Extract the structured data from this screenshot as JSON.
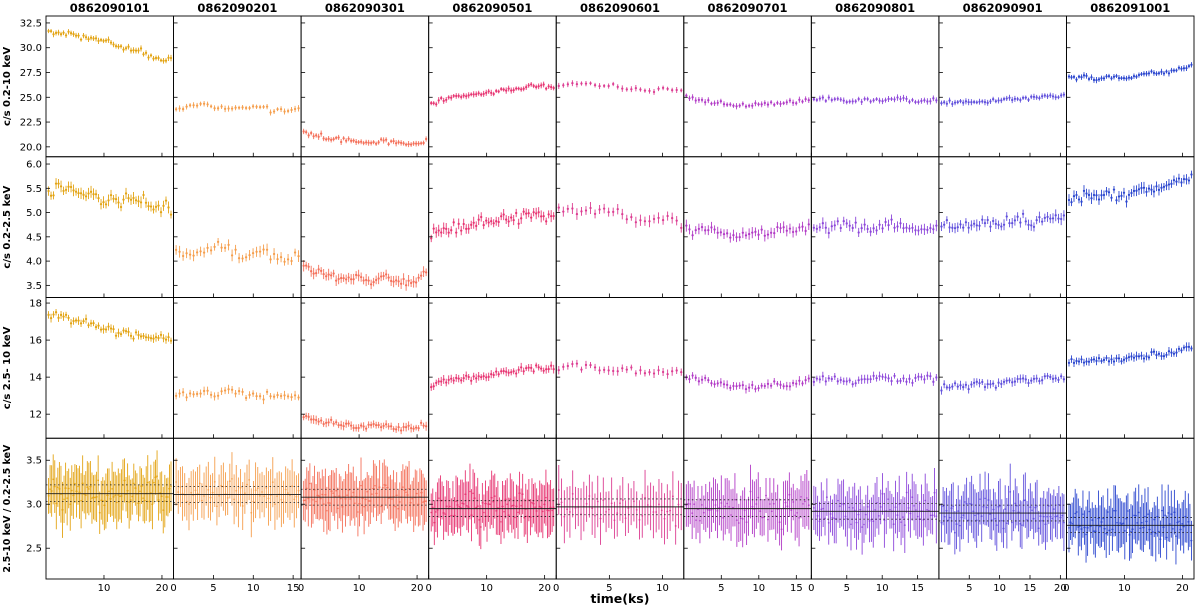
{
  "chart_data": {
    "type": "scatter",
    "description": "Grid of X-ray light curves (error-bar scatter) for 9 observations in 3 energy bands plus hardness ratio",
    "xlabel": "time(ks)",
    "rows": [
      {
        "label": "c/s 0.2-10 keV",
        "ylim": [
          19.0,
          33.2
        ],
        "yticks": [
          20.0,
          22.5,
          25.0,
          27.5,
          30.0,
          32.5
        ],
        "decimals": 1
      },
      {
        "label": "c/s 0.2-2.5 keV",
        "ylim": [
          3.25,
          6.15
        ],
        "yticks": [
          3.5,
          4.0,
          4.5,
          5.0,
          5.5,
          6.0
        ],
        "decimals": 1
      },
      {
        "label": "c/s 2.5- 10 keV",
        "ylim": [
          10.7,
          18.3
        ],
        "yticks": [
          12,
          14,
          16,
          18
        ],
        "decimals": 0
      },
      {
        "label": "2.5-10 keV / 0.2-2.5 keV",
        "ylim": [
          2.15,
          3.75
        ],
        "yticks": [
          2.5,
          3.0,
          3.5
        ],
        "decimals": 1
      }
    ],
    "columns": [
      {
        "obsid": "0862090101",
        "color": "#e3a414",
        "xlim": [
          0,
          22
        ],
        "xticks": [
          10,
          20
        ],
        "n_points": 50,
        "ratio_fit": {
          "mean": 3.12,
          "upper": 3.22,
          "lower": 3.03
        },
        "panels": [
          {
            "anchors": [
              31.7,
              31.4,
              31.2,
              31.0,
              30.7,
              30.3,
              29.9,
              29.5,
              29.1,
              28.7
            ],
            "scatter": 0.3,
            "err": 0.26
          },
          {
            "anchors": [
              5.5,
              5.55,
              5.42,
              5.35,
              5.28,
              5.25,
              5.3,
              5.2,
              5.15,
              5.1
            ],
            "scatter": 0.14,
            "err": 0.1
          },
          {
            "anchors": [
              17.4,
              17.2,
              17.1,
              16.9,
              16.7,
              16.5,
              16.4,
              16.2,
              16.1,
              16.0
            ],
            "scatter": 0.25,
            "err": 0.2
          },
          {
            "anchors": [
              3.12
            ],
            "scatter": 0.18,
            "err": 0.26
          }
        ]
      },
      {
        "obsid": "0862090201",
        "color": "#f59e4c",
        "xlim": [
          0,
          16
        ],
        "xticks": [
          0,
          5,
          10,
          15
        ],
        "n_points": 36,
        "ratio_fit": {
          "mean": 3.11,
          "upper": 3.2,
          "lower": 3.02
        },
        "panels": [
          {
            "anchors": [
              23.9,
              24.1,
              24.3,
              23.9,
              24.0,
              23.8,
              24.1,
              23.8,
              23.6,
              23.9
            ],
            "scatter": 0.25,
            "err": 0.26
          },
          {
            "anchors": [
              4.2,
              4.15,
              4.25,
              4.3,
              4.2,
              4.1,
              4.25,
              4.12,
              4.05,
              4.15
            ],
            "scatter": 0.1,
            "err": 0.1
          },
          {
            "anchors": [
              13.0,
              13.1,
              13.2,
              13.0,
              13.3,
              13.1,
              12.9,
              13.0,
              12.85,
              13.0
            ],
            "scatter": 0.18,
            "err": 0.2
          },
          {
            "anchors": [
              3.11
            ],
            "scatter": 0.18,
            "err": 0.26
          }
        ]
      },
      {
        "obsid": "0862090301",
        "color": "#f4705a",
        "xlim": [
          0,
          22
        ],
        "xticks": [
          0,
          10,
          20
        ],
        "n_points": 50,
        "ratio_fit": {
          "mean": 3.08,
          "upper": 3.17,
          "lower": 2.99
        },
        "panels": [
          {
            "anchors": [
              21.4,
              21.1,
              20.9,
              20.7,
              20.5,
              20.4,
              20.6,
              20.3,
              20.2,
              20.5
            ],
            "scatter": 0.25,
            "err": 0.26
          },
          {
            "anchors": [
              3.85,
              3.75,
              3.7,
              3.62,
              3.7,
              3.58,
              3.66,
              3.55,
              3.6,
              3.72
            ],
            "scatter": 0.1,
            "err": 0.1
          },
          {
            "anchors": [
              11.9,
              11.6,
              11.5,
              11.4,
              11.3,
              11.45,
              11.3,
              11.25,
              11.3,
              11.45
            ],
            "scatter": 0.17,
            "err": 0.2
          },
          {
            "anchors": [
              3.08
            ],
            "scatter": 0.18,
            "err": 0.26
          }
        ]
      },
      {
        "obsid": "0862090501",
        "color": "#e73572",
        "xlim": [
          0,
          22
        ],
        "xticks": [
          0,
          10,
          20
        ],
        "n_points": 50,
        "ratio_fit": {
          "mean": 2.95,
          "upper": 3.04,
          "lower": 2.86
        },
        "panels": [
          {
            "anchors": [
              24.4,
              24.8,
              25.1,
              25.3,
              25.5,
              25.6,
              25.8,
              26.0,
              26.1,
              26.0
            ],
            "scatter": 0.25,
            "err": 0.26
          },
          {
            "anchors": [
              4.5,
              4.6,
              4.7,
              4.75,
              4.8,
              4.85,
              4.9,
              4.95,
              4.9,
              4.95
            ],
            "scatter": 0.12,
            "err": 0.1
          },
          {
            "anchors": [
              13.5,
              13.8,
              13.9,
              14.0,
              14.1,
              14.2,
              14.3,
              14.45,
              14.5,
              14.4
            ],
            "scatter": 0.2,
            "err": 0.2
          },
          {
            "anchors": [
              2.95
            ],
            "scatter": 0.18,
            "err": 0.26
          }
        ]
      },
      {
        "obsid": "0862090601",
        "color": "#dc3d92",
        "xlim": [
          0,
          12
        ],
        "xticks": [
          0,
          5,
          10
        ],
        "n_points": 28,
        "ratio_fit": {
          "mean": 2.97,
          "upper": 3.06,
          "lower": 2.88
        },
        "panels": [
          {
            "anchors": [
              26.2,
              26.4,
              26.3,
              26.2,
              26.1,
              25.9,
              25.8,
              25.7,
              25.9,
              25.6
            ],
            "scatter": 0.22,
            "err": 0.26
          },
          {
            "anchors": [
              5.0,
              5.05,
              5.1,
              5.0,
              4.95,
              4.9,
              4.85,
              4.8,
              4.9,
              4.75
            ],
            "scatter": 0.12,
            "err": 0.1
          },
          {
            "anchors": [
              14.5,
              14.6,
              14.55,
              14.45,
              14.35,
              14.45,
              14.3,
              14.25,
              14.35,
              14.2
            ],
            "scatter": 0.17,
            "err": 0.2
          },
          {
            "anchors": [
              2.97
            ],
            "scatter": 0.18,
            "err": 0.26
          }
        ]
      },
      {
        "obsid": "0862090701",
        "color": "#b23bc6",
        "xlim": [
          0,
          17
        ],
        "xticks": [
          5,
          10,
          15
        ],
        "n_points": 40,
        "ratio_fit": {
          "mean": 2.95,
          "upper": 3.05,
          "lower": 2.86
        },
        "panels": [
          {
            "anchors": [
              25.0,
              24.7,
              24.5,
              24.2,
              24.1,
              24.2,
              24.4,
              24.5,
              24.6,
              24.8
            ],
            "scatter": 0.22,
            "err": 0.26
          },
          {
            "anchors": [
              4.7,
              4.65,
              4.6,
              4.55,
              4.5,
              4.55,
              4.6,
              4.65,
              4.6,
              4.7
            ],
            "scatter": 0.11,
            "err": 0.1
          },
          {
            "anchors": [
              14.0,
              13.9,
              13.7,
              13.6,
              13.5,
              13.45,
              13.55,
              13.65,
              13.7,
              13.8
            ],
            "scatter": 0.17,
            "err": 0.2
          },
          {
            "anchors": [
              2.95
            ],
            "scatter": 0.18,
            "err": 0.26
          }
        ]
      },
      {
        "obsid": "0862090801",
        "color": "#8d47da",
        "xlim": [
          0,
          18
        ],
        "xticks": [
          0,
          5,
          10,
          15
        ],
        "n_points": 42,
        "ratio_fit": {
          "mean": 2.92,
          "upper": 3.01,
          "lower": 2.83
        },
        "panels": [
          {
            "anchors": [
              24.8,
              24.9,
              24.7,
              24.6,
              24.8,
              24.7,
              24.9,
              24.8,
              24.6,
              24.75
            ],
            "scatter": 0.22,
            "err": 0.26
          },
          {
            "anchors": [
              4.65,
              4.7,
              4.75,
              4.7,
              4.62,
              4.7,
              4.75,
              4.7,
              4.65,
              4.72
            ],
            "scatter": 0.11,
            "err": 0.1
          },
          {
            "anchors": [
              13.8,
              13.9,
              13.8,
              13.7,
              13.9,
              14.0,
              13.9,
              13.85,
              14.0,
              13.9
            ],
            "scatter": 0.17,
            "err": 0.2
          },
          {
            "anchors": [
              2.92
            ],
            "scatter": 0.18,
            "err": 0.26
          }
        ]
      },
      {
        "obsid": "0862090901",
        "color": "#6050dc",
        "xlim": [
          0,
          21
        ],
        "xticks": [
          5,
          10,
          15,
          20
        ],
        "n_points": 46,
        "ratio_fit": {
          "mean": 2.9,
          "upper": 2.99,
          "lower": 2.81
        },
        "panels": [
          {
            "anchors": [
              24.4,
              24.5,
              24.6,
              24.5,
              24.7,
              24.8,
              24.85,
              25.0,
              25.1,
              25.2
            ],
            "scatter": 0.2,
            "err": 0.26
          },
          {
            "anchors": [
              4.7,
              4.75,
              4.72,
              4.8,
              4.76,
              4.82,
              4.85,
              4.8,
              4.9,
              4.88
            ],
            "scatter": 0.11,
            "err": 0.1
          },
          {
            "anchors": [
              13.5,
              13.6,
              13.55,
              13.7,
              13.6,
              13.75,
              13.85,
              13.8,
              14.0,
              13.9
            ],
            "scatter": 0.17,
            "err": 0.2
          },
          {
            "anchors": [
              2.9
            ],
            "scatter": 0.18,
            "err": 0.26
          }
        ]
      },
      {
        "obsid": "0862091001",
        "color": "#2c47cf",
        "xlim": [
          0,
          22
        ],
        "xticks": [
          0,
          10,
          20
        ],
        "n_points": 50,
        "ratio_fit": {
          "mean": 2.76,
          "upper": 2.85,
          "lower": 2.68
        },
        "panels": [
          {
            "anchors": [
              26.9,
              27.0,
              26.8,
              27.1,
              27.0,
              27.2,
              27.35,
              27.5,
              27.8,
              28.1
            ],
            "scatter": 0.22,
            "err": 0.26
          },
          {
            "anchors": [
              5.3,
              5.35,
              5.3,
              5.4,
              5.35,
              5.45,
              5.5,
              5.55,
              5.65,
              5.75
            ],
            "scatter": 0.12,
            "err": 0.1
          },
          {
            "anchors": [
              14.8,
              14.9,
              14.85,
              15.0,
              14.9,
              15.1,
              15.15,
              15.3,
              15.4,
              15.6
            ],
            "scatter": 0.17,
            "err": 0.2
          },
          {
            "anchors": [
              2.76
            ],
            "scatter": 0.18,
            "err": 0.26
          }
        ]
      }
    ],
    "layout": {
      "grid": "4 rows x 9 columns",
      "shared_axes": true,
      "legend": "none",
      "fit_line_style": "solid mean with dotted confidence bounds (ratio row only)"
    }
  }
}
